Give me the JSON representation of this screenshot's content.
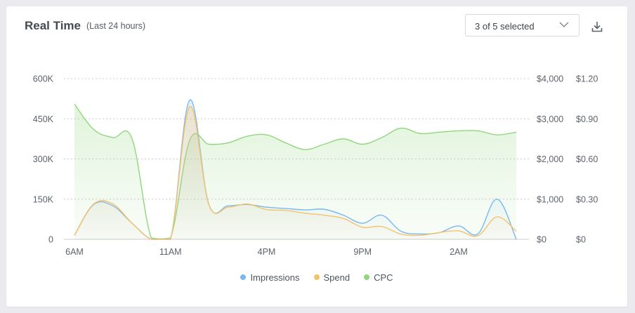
{
  "header": {
    "title": "Real Time",
    "subtitle": "(Last 24 hours)",
    "selector_label": "3 of 5 selected"
  },
  "icons": {
    "dropdown": "chevron-down-icon",
    "download": "download-icon"
  },
  "colors": {
    "impressions": "#7ab8ef",
    "spend": "#f5c26b",
    "cpc": "#8fd67c",
    "grid": "#c9ccd1"
  },
  "chart_data": {
    "type": "area",
    "x_ticks": [
      "6AM",
      "11AM",
      "4PM",
      "9PM",
      "2AM"
    ],
    "y_left": {
      "ticks": [
        "600K",
        "450K",
        "300K",
        "150K",
        "0"
      ],
      "ylim": [
        0,
        600000
      ]
    },
    "y_spend": {
      "ticks": [
        "$4,000",
        "$3,000",
        "$2,000",
        "$1,000",
        "$0"
      ],
      "ylim": [
        0,
        4000
      ]
    },
    "y_cpc": {
      "ticks": [
        "$1.20",
        "$0.90",
        "$0.60",
        "$0.30",
        "$0"
      ],
      "ylim": [
        0,
        1.2
      ]
    },
    "grid": true,
    "legend_position": "bottom-center",
    "x": [
      0,
      1,
      2,
      3,
      4,
      5,
      6,
      7,
      8,
      9,
      10,
      11,
      12,
      13,
      14,
      15,
      16,
      17,
      18,
      19,
      20,
      21,
      22,
      23
    ],
    "series": [
      {
        "name": "Impressions",
        "axis": "left",
        "values": [
          15000,
          130000,
          125000,
          60000,
          0,
          0,
          520000,
          130000,
          125000,
          130000,
          120000,
          115000,
          110000,
          112000,
          90000,
          60000,
          90000,
          30000,
          20000,
          25000,
          50000,
          20000,
          150000,
          0
        ]
      },
      {
        "name": "Spend",
        "axis": "spend",
        "values": [
          100,
          880,
          880,
          400,
          0,
          0,
          3300,
          860,
          800,
          880,
          740,
          720,
          650,
          600,
          520,
          300,
          320,
          130,
          100,
          170,
          210,
          90,
          560,
          200
        ]
      },
      {
        "name": "CPC",
        "axis": "cpc",
        "values": [
          1.01,
          0.82,
          0.76,
          0.75,
          0.01,
          0.01,
          0.74,
          0.71,
          0.72,
          0.77,
          0.78,
          0.72,
          0.67,
          0.71,
          0.75,
          0.71,
          0.76,
          0.83,
          0.79,
          0.8,
          0.81,
          0.81,
          0.78,
          0.8
        ]
      }
    ]
  }
}
